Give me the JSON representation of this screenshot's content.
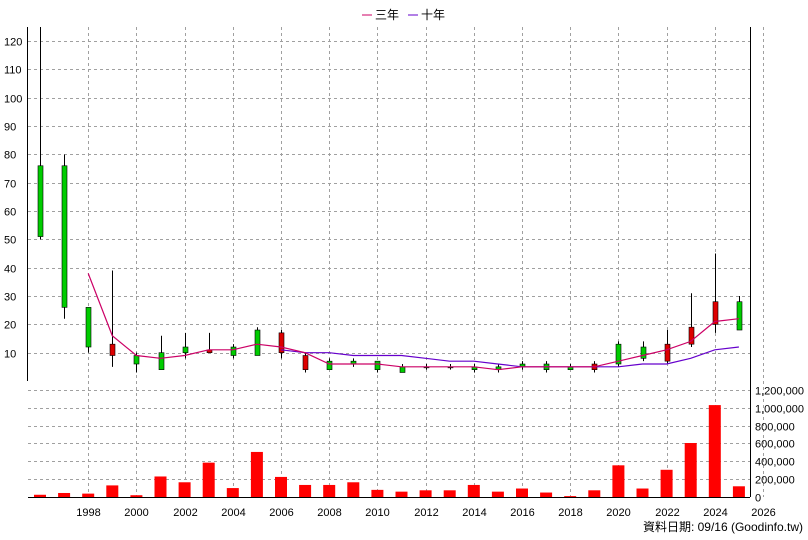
{
  "chart_data": {
    "type": "candlestick-with-volume",
    "legend": [
      {
        "name": "三年",
        "color": "#cc0066"
      },
      {
        "name": "十年",
        "color": "#6600cc"
      }
    ],
    "source": "資料日期: 09/16  (Goodinfo.tw)",
    "x_ticks": [
      "1998",
      "2000",
      "2002",
      "2004",
      "2006",
      "2008",
      "2010",
      "2012",
      "2014",
      "2016",
      "2018",
      "2020",
      "2022",
      "2024",
      "2026"
    ],
    "price_axis": {
      "ylim": [
        0,
        125
      ],
      "ticks": [
        10,
        20,
        30,
        40,
        50,
        60,
        70,
        80,
        90,
        100,
        110,
        120
      ]
    },
    "volume_axis": {
      "ylim": [
        0,
        1300000
      ],
      "ticks": [
        0,
        200000,
        400000,
        600000,
        800000,
        1000000,
        1200000
      ],
      "tick_labels": [
        "0",
        "200,000",
        "400,000",
        "600,000",
        "800,000",
        "1,000,000",
        "1,200,000"
      ]
    },
    "up_color": "#00cc00",
    "down_color": "#dd0000",
    "years": [
      1997,
      1998,
      1999,
      2000,
      2001,
      2002,
      2003,
      2004,
      2005,
      2006,
      2007,
      2008,
      2009,
      2010,
      2011,
      2012,
      2013,
      2014,
      2015,
      2016,
      2017,
      2018,
      2019,
      2020,
      2021,
      2022,
      2023,
      2024,
      2025,
      2026
    ],
    "open": [
      51,
      26,
      12,
      13,
      6,
      4,
      10,
      11,
      9,
      9,
      17,
      9,
      4,
      6,
      4,
      3,
      5,
      5,
      4,
      4,
      5,
      4,
      4,
      6,
      6,
      8,
      13,
      19,
      28,
      18
    ],
    "close": [
      76,
      76,
      26,
      9,
      9,
      10,
      12,
      10,
      12,
      18,
      10,
      4,
      7,
      7,
      7,
      5,
      5,
      5,
      5,
      5,
      6,
      6,
      5,
      4,
      13,
      12,
      7,
      13,
      20,
      28
    ],
    "high": [
      125,
      80,
      26,
      39,
      10,
      16,
      17,
      17,
      13,
      19,
      18,
      10,
      8,
      8,
      7,
      6,
      6,
      6,
      6,
      6,
      7,
      7,
      6,
      7,
      14,
      14,
      18,
      31,
      45,
      30
    ],
    "low": [
      50,
      22,
      10,
      5,
      3,
      4,
      8,
      10,
      8,
      9,
      8,
      3,
      4,
      5,
      3,
      3,
      4,
      4,
      3,
      3,
      4,
      3,
      4,
      3,
      5,
      7,
      6,
      12,
      17,
      18
    ],
    "volume": [
      25000,
      45000,
      38000,
      130000,
      20000,
      230000,
      165000,
      385000,
      100000,
      505000,
      225000,
      135000,
      135000,
      165000,
      80000,
      60000,
      75000,
      75000,
      135000,
      60000,
      95000,
      50000,
      10000,
      75000,
      355000,
      95000,
      305000,
      605000,
      1030000,
      120000
    ],
    "ma3": [
      null,
      null,
      38,
      16,
      9,
      8,
      9,
      11,
      11,
      13,
      12,
      10,
      6,
      6,
      6,
      5,
      5,
      5,
      5,
      4,
      5,
      5,
      5,
      5,
      7,
      9,
      11,
      14,
      21,
      22
    ],
    "ma10": [
      null,
      null,
      null,
      null,
      null,
      null,
      null,
      null,
      null,
      null,
      11,
      10,
      10,
      9,
      9,
      9,
      8,
      7,
      7,
      6,
      5,
      5,
      5,
      5,
      5,
      6,
      6,
      8,
      11,
      12
    ]
  }
}
